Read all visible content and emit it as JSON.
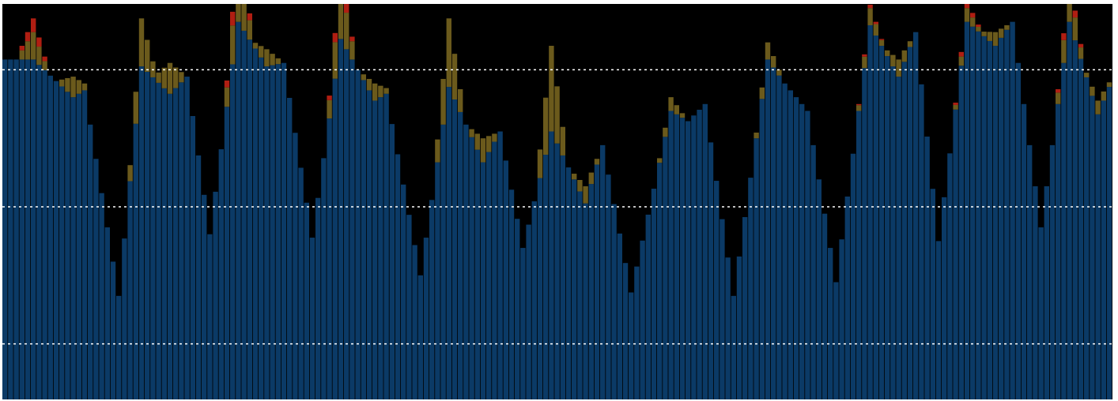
{
  "chart_data": {
    "type": "bar",
    "stacked": true,
    "title": "",
    "xlabel": "",
    "ylabel": "",
    "ylim": [
      0,
      100
    ],
    "grid_y": [
      10,
      50,
      90
    ],
    "grid_style": "dotted",
    "legend": "none",
    "background": "#000000",
    "grid_color": "#ffffff",
    "x_count": 195,
    "series": [
      {
        "color": "#0b3a66",
        "peaks": [
          {
            "x": 5,
            "y": 93
          },
          {
            "x": 12,
            "y": 82
          },
          {
            "x": 14,
            "y": 84
          },
          {
            "x": 20,
            "y": 24
          },
          {
            "x": 24,
            "y": 91
          },
          {
            "x": 29,
            "y": 83
          },
          {
            "x": 32,
            "y": 88
          },
          {
            "x": 36,
            "y": 42
          },
          {
            "x": 41,
            "y": 104
          },
          {
            "x": 46,
            "y": 91
          },
          {
            "x": 49,
            "y": 92
          },
          {
            "x": 54,
            "y": 41
          },
          {
            "x": 59,
            "y": 99
          },
          {
            "x": 65,
            "y": 81
          },
          {
            "x": 67,
            "y": 83
          },
          {
            "x": 73,
            "y": 30
          },
          {
            "x": 78,
            "y": 85
          },
          {
            "x": 84,
            "y": 63
          },
          {
            "x": 87,
            "y": 72
          },
          {
            "x": 91,
            "y": 38
          },
          {
            "x": 96,
            "y": 72
          },
          {
            "x": 102,
            "y": 51
          },
          {
            "x": 105,
            "y": 68
          },
          {
            "x": 110,
            "y": 25
          },
          {
            "x": 117,
            "y": 78
          },
          {
            "x": 120,
            "y": 75
          },
          {
            "x": 123,
            "y": 80
          },
          {
            "x": 128,
            "y": 24
          },
          {
            "x": 134,
            "y": 93
          },
          {
            "x": 137,
            "y": 86
          },
          {
            "x": 141,
            "y": 78
          },
          {
            "x": 146,
            "y": 28
          },
          {
            "x": 152,
            "y": 103
          },
          {
            "x": 157,
            "y": 88
          },
          {
            "x": 160,
            "y": 101
          },
          {
            "x": 164,
            "y": 40
          },
          {
            "x": 169,
            "y": 104
          },
          {
            "x": 174,
            "y": 97
          },
          {
            "x": 177,
            "y": 104
          },
          {
            "x": 182,
            "y": 44
          },
          {
            "x": 187,
            "y": 104
          },
          {
            "x": 192,
            "y": 77
          },
          {
            "x": 194,
            "y": 85
          }
        ]
      },
      {
        "color": "#6b5a1c",
        "peaks": [
          {
            "x": 5,
            "y": 8
          },
          {
            "x": 12,
            "y": 6
          },
          {
            "x": 24,
            "y": 14
          },
          {
            "x": 29,
            "y": 9
          },
          {
            "x": 41,
            "y": 17
          },
          {
            "x": 46,
            "y": 5
          },
          {
            "x": 59,
            "y": 16
          },
          {
            "x": 65,
            "y": 5
          },
          {
            "x": 78,
            "y": 20
          },
          {
            "x": 84,
            "y": 7
          },
          {
            "x": 96,
            "y": 25
          },
          {
            "x": 102,
            "y": 5
          },
          {
            "x": 117,
            "y": 4
          },
          {
            "x": 134,
            "y": 5
          },
          {
            "x": 152,
            "y": 5
          },
          {
            "x": 157,
            "y": 5
          },
          {
            "x": 169,
            "y": 4
          },
          {
            "x": 174,
            "y": 4
          },
          {
            "x": 187,
            "y": 10
          },
          {
            "x": 192,
            "y": 4
          }
        ]
      },
      {
        "color": "#b01e12",
        "peaks": [
          {
            "x": 5,
            "y": 4
          },
          {
            "x": 41,
            "y": 6
          },
          {
            "x": 59,
            "y": 4
          },
          {
            "x": 152,
            "y": 1
          },
          {
            "x": 169,
            "y": 2
          },
          {
            "x": 187,
            "y": 3
          }
        ]
      }
    ]
  }
}
